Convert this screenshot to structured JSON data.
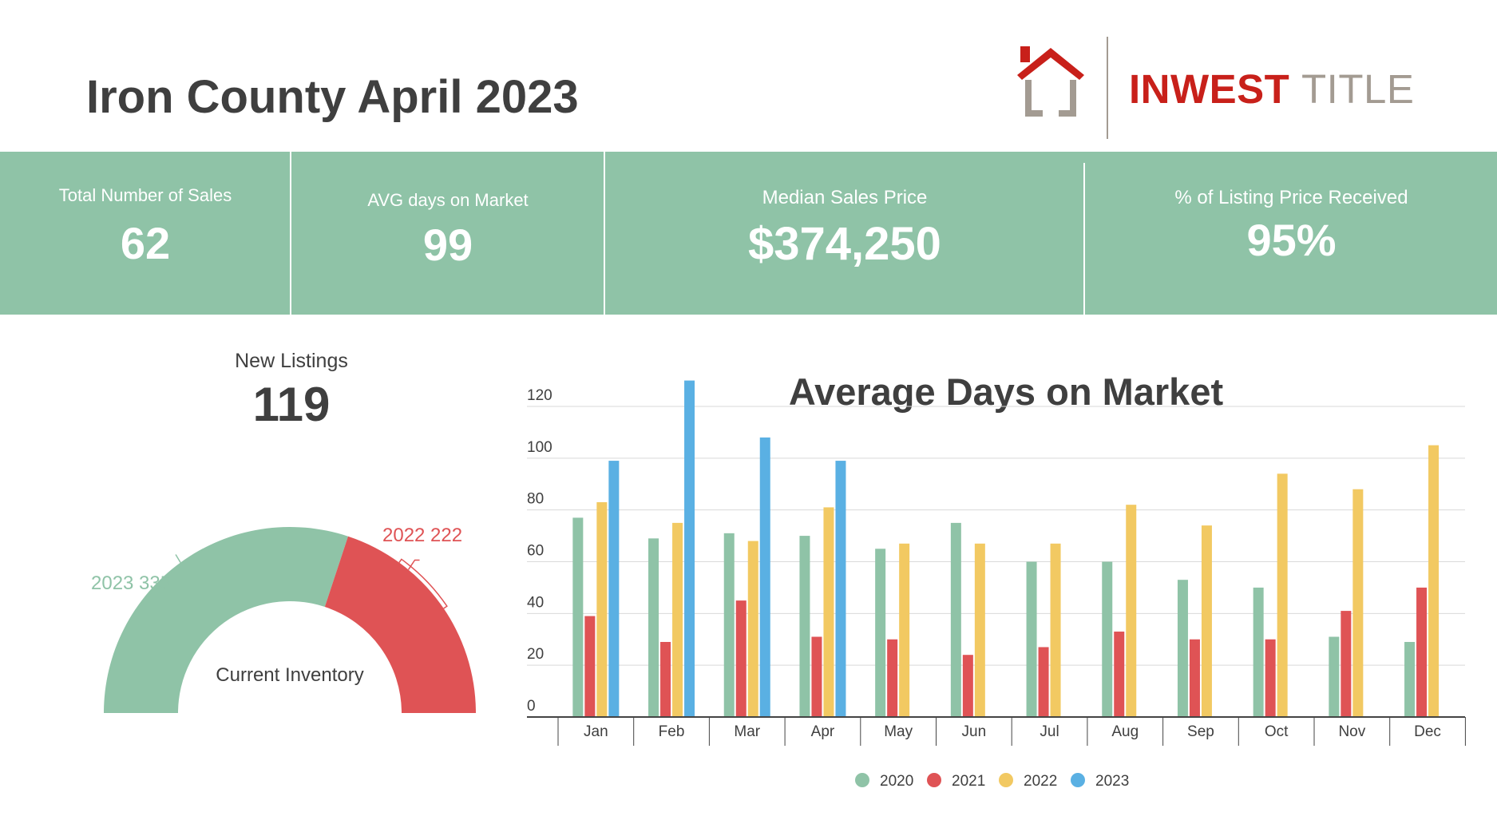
{
  "header": {
    "title": "Iron County April 2023",
    "logo": {
      "word1": "INWEST",
      "word2": "TITLE",
      "accent_color": "#c8201a",
      "secondary_color": "#a39b92"
    }
  },
  "kpis": [
    {
      "label": "Total Number of Sales",
      "value": "62"
    },
    {
      "label": "AVG days on Market",
      "value": "99"
    },
    {
      "label": "Median Sales Price",
      "value": "$374,250"
    },
    {
      "label": "% of Listing Price Received",
      "value": "95%"
    }
  ],
  "new_listings": {
    "label": "New Listings",
    "value": "119"
  },
  "inventory_gauge": {
    "center_label": "Current Inventory",
    "segments": [
      {
        "label": "2023 335",
        "value": 335,
        "color": "#8fc3a7"
      },
      {
        "label": "2022 222",
        "value": 222,
        "color": "#df5355"
      }
    ]
  },
  "colors": {
    "band": "#8fc3a7",
    "s2020": "#8fc3a7",
    "s2021": "#df5355",
    "s2022": "#f2c962",
    "s2023": "#5ab0e3"
  },
  "chart_data": [
    {
      "type": "bar",
      "title": "Average Days on Market",
      "categories": [
        "Jan",
        "Feb",
        "Mar",
        "Apr",
        "May",
        "Jun",
        "Jul",
        "Aug",
        "Sep",
        "Oct",
        "Nov",
        "Dec"
      ],
      "ylim": [
        0,
        120
      ],
      "yticks": [
        0,
        20,
        40,
        60,
        80,
        100,
        120
      ],
      "grid": true,
      "legend_position": "bottom",
      "series": [
        {
          "name": "2020",
          "color": "#8fc3a7",
          "values": [
            77,
            69,
            71,
            70,
            65,
            75,
            60,
            60,
            53,
            50,
            31,
            29
          ]
        },
        {
          "name": "2021",
          "color": "#df5355",
          "values": [
            39,
            29,
            45,
            31,
            30,
            24,
            27,
            33,
            30,
            30,
            41,
            50
          ]
        },
        {
          "name": "2022",
          "color": "#f2c962",
          "values": [
            83,
            75,
            68,
            81,
            67,
            67,
            67,
            82,
            74,
            94,
            88,
            105
          ]
        },
        {
          "name": "2023",
          "color": "#5ab0e3",
          "values": [
            99,
            130,
            108,
            99,
            null,
            null,
            null,
            null,
            null,
            null,
            null,
            null
          ]
        }
      ]
    }
  ]
}
